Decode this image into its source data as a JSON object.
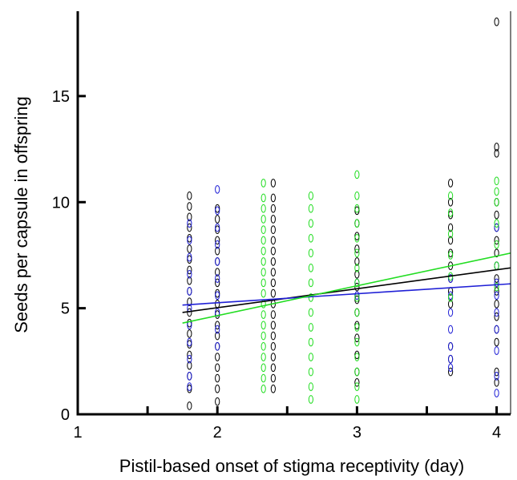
{
  "chart_data": {
    "type": "scatter",
    "title": "",
    "xlabel": "Pistil-based onset of stigma receptivity (day)",
    "ylabel": "Seeds per capsule in offspring",
    "xlim": [
      1,
      4.1
    ],
    "ylim": [
      0,
      19
    ],
    "x_ticks": [
      1,
      2,
      3,
      4
    ],
    "x_minor_ticks": [
      1.5,
      2.5,
      3.5
    ],
    "y_ticks": [
      0,
      5,
      10,
      15
    ],
    "x_tick_labels": [
      "1",
      "2",
      "3",
      "4"
    ],
    "y_tick_labels": [
      "0",
      "5",
      "10",
      "15"
    ],
    "grid": false,
    "legend": "none",
    "series": [
      {
        "color": "#000000",
        "points": [
          {
            "x": 1.8,
            "y": [
              0.4,
              1.2,
              1.8,
              2.3,
              2.8,
              3.3,
              3.8,
              4.3,
              4.8,
              5.3,
              5.8,
              6.3,
              6.8,
              7.3,
              7.8,
              8.3,
              8.8,
              9.3,
              9.8,
              10.3
            ]
          },
          {
            "x": 2.0,
            "y": [
              0.6,
              1.2,
              1.7,
              2.2,
              2.7,
              3.2,
              3.7,
              4.2,
              4.7,
              5.2,
              5.7,
              6.2,
              6.7,
              7.2,
              7.7,
              8.2,
              8.7,
              9.2,
              9.7
            ]
          },
          {
            "x": 2.4,
            "y": [
              1.2,
              1.7,
              2.2,
              2.7,
              3.2,
              3.7,
              4.2,
              4.7,
              5.2,
              5.7,
              6.2,
              6.7,
              7.2,
              7.7,
              8.2,
              8.7,
              9.2,
              9.7,
              10.2,
              10.9
            ]
          },
          {
            "x": 3.0,
            "y": [
              1.5,
              2.0,
              2.8,
              3.6,
              4.2,
              4.8,
              5.4,
              6.0,
              6.6,
              7.2,
              7.8,
              8.4,
              9.0,
              9.6
            ]
          },
          {
            "x": 3.67,
            "y": [
              2.0,
              2.6,
              3.2,
              5.2,
              5.8,
              6.4,
              7.0,
              7.6,
              8.2,
              8.8,
              9.4,
              10.0,
              10.9
            ]
          },
          {
            "x": 4.0,
            "y": [
              1.5,
              2.0,
              3.4,
              4.0,
              4.6,
              5.2,
              5.8,
              6.4,
              7.0,
              7.6,
              8.2,
              8.8,
              9.4,
              10.0,
              12.3,
              12.6,
              18.5
            ]
          }
        ],
        "fit": {
          "x": [
            1.75,
            4.1
          ],
          "y": [
            4.8,
            6.9
          ]
        }
      },
      {
        "color": "#1f1fd6",
        "points": [
          {
            "x": 1.8,
            "y": [
              1.3,
              1.8,
              2.6,
              3.4,
              4.2,
              5.0,
              5.8,
              6.6,
              7.4,
              8.2,
              9.0
            ]
          },
          {
            "x": 2.0,
            "y": [
              3.2,
              4.0,
              4.8,
              5.6,
              6.4,
              7.2,
              8.0,
              8.8,
              9.6,
              10.6
            ]
          },
          {
            "x": 3.0,
            "y": [
              5.6,
              6.2
            ]
          },
          {
            "x": 3.67,
            "y": [
              2.2,
              2.6,
              3.2,
              4.0,
              4.8,
              5.6,
              6.4
            ]
          },
          {
            "x": 4.0,
            "y": [
              1.0,
              1.8,
              3.0,
              4.0,
              4.8,
              5.6,
              6.2,
              7.0,
              8.8
            ]
          }
        ],
        "fit": {
          "x": [
            1.75,
            4.1
          ],
          "y": [
            5.15,
            6.15
          ]
        }
      },
      {
        "color": "#22dd22",
        "points": [
          {
            "x": 2.33,
            "y": [
              1.2,
              1.7,
              2.2,
              2.7,
              3.2,
              3.7,
              4.2,
              4.7,
              5.2,
              5.7,
              6.2,
              6.7,
              7.2,
              7.7,
              8.2,
              8.7,
              9.2,
              9.7,
              10.2,
              10.9
            ]
          },
          {
            "x": 2.67,
            "y": [
              0.7,
              1.3,
              2.0,
              2.7,
              3.4,
              4.1,
              4.8,
              5.5,
              6.2,
              6.9,
              7.6,
              8.3,
              9.0,
              9.7,
              10.3
            ]
          },
          {
            "x": 3.0,
            "y": [
              0.7,
              1.3,
              2.0,
              2.7,
              3.4,
              4.1,
              4.8,
              5.5,
              6.2,
              6.9,
              7.6,
              8.3,
              9.0,
              9.7,
              10.3,
              11.3
            ]
          },
          {
            "x": 3.67,
            "y": [
              5.5,
              6.5,
              7.5,
              8.5,
              9.5,
              10.3
            ]
          },
          {
            "x": 4.0,
            "y": [
              6.0,
              7.0,
              8.0,
              9.0,
              10.0,
              10.5,
              11.0
            ]
          }
        ],
        "fit": {
          "x": [
            1.75,
            4.1
          ],
          "y": [
            4.3,
            7.6
          ]
        }
      }
    ]
  }
}
